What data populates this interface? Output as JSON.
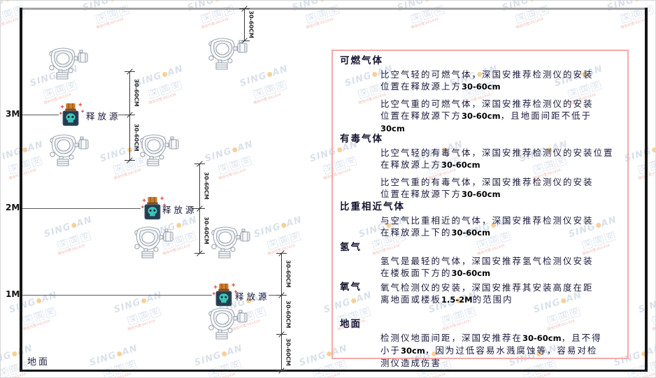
{
  "watermark": {
    "brand_left": "SING",
    "brand_right": "AN",
    "cn_chars": [
      "深",
      "国",
      "安"
    ],
    "red_text": "微信代理:661434"
  },
  "diagram": {
    "dim_label": "30-60CM",
    "markers": [
      {
        "label": "3M"
      },
      {
        "label": "2M"
      },
      {
        "label": "1M"
      }
    ],
    "release_source_label": "释放源",
    "ground_label": "地面"
  },
  "panel": {
    "sections": [
      {
        "heading": "可燃气体",
        "paragraphs": [
          [
            "比空气轻的可燃气体，深国安推荐检测仪的安装",
            "位置在释放源上方30-60cm"
          ],
          [
            "比空气重的可燃气体，深国安推荐检测仪的安装",
            "位置在释放源下方30-60cm，且地面间距不低于",
            "30cm"
          ]
        ]
      },
      {
        "heading": "有毒气体",
        "paragraphs": [
          [
            "比空气轻的有毒气体，深国安推荐检测仪的安装位置",
            "在释放源上方30-60cm"
          ],
          [
            "比空气重的有毒气体，深国安推荐检测仪的安装",
            "位置在释放源下方30-60cm"
          ]
        ]
      },
      {
        "heading": "比重相近气体",
        "paragraphs": [
          [
            "与空气比重相近的气体，深国安推荐检测仪安装",
            "在释放源上下的30-60cm"
          ]
        ]
      },
      {
        "heading": "氢气",
        "paragraphs": [
          [
            "氢气是最轻的气体，深国安推荐氢气检测仪安装",
            "在楼板面下方的30-60cm"
          ]
        ]
      },
      {
        "heading": "氧气",
        "heading_inline": true,
        "paragraphs": [
          [
            "氧气检测仪的安装，深国安推荐其安装高度在距",
            "离地面或楼板1.5-2M的范围内"
          ]
        ]
      },
      {
        "heading": "地面",
        "paragraphs": [
          [
            "检测仪地面间距，深国安推荐在30-60cm，且不得",
            "小于30cm，因为过低容易水溅腐蚀等，容易对检",
            "测仪造成伤害"
          ]
        ]
      }
    ]
  }
}
